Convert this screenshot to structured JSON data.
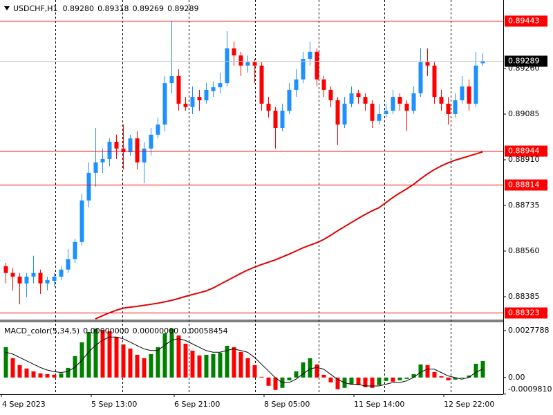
{
  "chart_data": [
    {
      "type": "candlestick",
      "title": "USDCHF,H1",
      "header_values": [
        "0.89280",
        "0.89318",
        "0.89269",
        "0.89289"
      ],
      "categories": [
        "4 Sep 2023",
        null,
        null,
        null,
        null,
        null,
        null,
        null,
        null,
        null,
        null,
        null,
        null,
        "5 Sep 13:00",
        null,
        null,
        null,
        null,
        null,
        null,
        null,
        null,
        null,
        null,
        null,
        "6 Sep 21:00",
        null,
        null,
        null,
        null,
        null,
        null,
        null,
        null,
        null,
        null,
        null,
        null,
        "8 Sep 05:00",
        null,
        null,
        null,
        null,
        null,
        null,
        null,
        null,
        null,
        null,
        null,
        null,
        "11 Sep 14:00",
        null,
        null,
        null,
        null,
        null,
        null,
        null,
        null,
        null,
        null,
        null,
        null,
        "12 Sep 22:00",
        null,
        null,
        null,
        null,
        null
      ],
      "open": [
        0.88502,
        0.88476,
        0.88462,
        0.88436,
        0.88462,
        0.88476,
        0.88436,
        0.88446,
        0.88462,
        0.88489,
        0.88529,
        0.88595,
        0.88754,
        0.8886,
        0.889,
        0.88913,
        0.88979,
        0.88953,
        0.88939,
        0.88992,
        0.889,
        0.88953,
        0.89006,
        0.89045,
        0.89204,
        0.89231,
        0.89125,
        0.89112,
        0.89151,
        0.89138,
        0.89173,
        0.89188,
        0.89204,
        0.89337,
        0.8931,
        0.89271,
        0.89284,
        0.89271,
        0.89125,
        0.89098,
        0.89032,
        0.89098,
        0.89178,
        0.89218,
        0.89297,
        0.89324,
        0.89218,
        0.89178,
        0.89138,
        0.89045,
        0.89125,
        0.89165,
        0.89151,
        0.89125,
        0.89059,
        0.89085,
        0.89098,
        0.89151,
        0.89125,
        0.89098,
        0.89165,
        0.89284,
        0.89271,
        0.89151,
        0.89125,
        0.89085,
        0.89138,
        0.89191,
        0.89125,
        0.8928
      ],
      "high": [
        0.88515,
        0.88494,
        0.88476,
        0.88476,
        0.88542,
        0.88489,
        0.88462,
        0.88476,
        0.88502,
        0.88568,
        0.88608,
        0.8878,
        0.889,
        0.89032,
        0.88953,
        0.88992,
        0.89006,
        0.89045,
        0.89006,
        0.89019,
        0.88979,
        0.89032,
        0.89072,
        0.89231,
        0.89443,
        0.89257,
        0.89151,
        0.89191,
        0.89178,
        0.89204,
        0.8921,
        0.89244,
        0.89403,
        0.89363,
        0.89324,
        0.8931,
        0.89297,
        0.89284,
        0.89151,
        0.89112,
        0.89125,
        0.89204,
        0.89257,
        0.89324,
        0.89363,
        0.89337,
        0.89231,
        0.89191,
        0.89151,
        0.89151,
        0.89191,
        0.89178,
        0.89165,
        0.89138,
        0.89125,
        0.89125,
        0.89178,
        0.89165,
        0.89138,
        0.89191,
        0.89337,
        0.89337,
        0.89284,
        0.89178,
        0.89151,
        0.89165,
        0.89231,
        0.89218,
        0.89324,
        0.89318
      ],
      "low": [
        0.88436,
        0.88409,
        0.88356,
        0.88383,
        0.88436,
        0.88396,
        0.88409,
        0.88423,
        0.88449,
        0.88476,
        0.88515,
        0.88582,
        0.88727,
        0.88807,
        0.8886,
        0.88886,
        0.88913,
        0.88873,
        0.88926,
        0.88873,
        0.8882,
        0.88926,
        0.88992,
        0.89019,
        0.89165,
        0.89098,
        0.89098,
        0.89085,
        0.89098,
        0.89125,
        0.89151,
        0.89165,
        0.89191,
        0.89271,
        0.89231,
        0.89244,
        0.89204,
        0.89098,
        0.89072,
        0.88953,
        0.89019,
        0.89085,
        0.89151,
        0.89204,
        0.89271,
        0.89191,
        0.89151,
        0.89112,
        0.88966,
        0.89032,
        0.89112,
        0.89125,
        0.89098,
        0.89032,
        0.89045,
        0.89072,
        0.89085,
        0.89098,
        0.89019,
        0.89085,
        0.89151,
        0.89231,
        0.89125,
        0.89098,
        0.89045,
        0.89072,
        0.89125,
        0.89098,
        0.89112,
        0.89269
      ],
      "close": [
        0.88476,
        0.88462,
        0.88436,
        0.88462,
        0.88476,
        0.88436,
        0.88449,
        0.88462,
        0.88489,
        0.88529,
        0.88595,
        0.88754,
        0.8886,
        0.889,
        0.88913,
        0.88979,
        0.88953,
        0.88939,
        0.88992,
        0.889,
        0.88953,
        0.89006,
        0.89045,
        0.89204,
        0.89231,
        0.89125,
        0.89112,
        0.89151,
        0.89138,
        0.89178,
        0.89188,
        0.89204,
        0.89337,
        0.8931,
        0.89271,
        0.89284,
        0.89271,
        0.89125,
        0.89098,
        0.89032,
        0.89098,
        0.89178,
        0.89218,
        0.89297,
        0.89324,
        0.89218,
        0.89178,
        0.89138,
        0.89045,
        0.89125,
        0.89165,
        0.89151,
        0.89125,
        0.89059,
        0.89085,
        0.89098,
        0.89151,
        0.89125,
        0.89098,
        0.89165,
        0.89284,
        0.89271,
        0.89151,
        0.89125,
        0.89085,
        0.89138,
        0.89191,
        0.89125,
        0.89271,
        0.89289
      ],
      "up_color": "#1e90ff",
      "down_color": "#ff0000",
      "ma": {
        "color": "#e00000",
        "values": [
          null,
          null,
          null,
          null,
          null,
          null,
          null,
          null,
          null,
          null,
          null,
          null,
          null,
          0.883,
          0.88312,
          0.88323,
          0.88333,
          0.88341,
          0.88345,
          0.88348,
          0.88352,
          0.88356,
          0.8836,
          0.88365,
          0.88371,
          0.88378,
          0.88386,
          0.88393,
          0.884,
          0.88407,
          0.88418,
          0.88432,
          0.88446,
          0.8846,
          0.88474,
          0.88487,
          0.88498,
          0.88508,
          0.88517,
          0.88526,
          0.88537,
          0.88548,
          0.8856,
          0.88572,
          0.88582,
          0.88592,
          0.88604,
          0.8862,
          0.88637,
          0.88653,
          0.88669,
          0.88685,
          0.887,
          0.88714,
          0.88726,
          0.88745,
          0.88765,
          0.88782,
          0.88798,
          0.88815,
          0.88836,
          0.88855,
          0.88872,
          0.88886,
          0.88898,
          0.88908,
          0.88916,
          0.88924,
          0.88932,
          0.8894
        ]
      },
      "levels": [
        0.89443,
        0.88944,
        0.88814,
        0.88323
      ],
      "level_color": "#ff0000",
      "last_price": 0.89289,
      "ylim": [
        0.882975,
        0.895225
      ],
      "yticks": [
        {
          "value": 0.8926,
          "label": "0.89260"
        },
        0.89085,
        {
          "value": 0.8891,
          "label": "0.88910"
        },
        0.88735,
        {
          "value": 0.8856,
          "label": "0.88560"
        },
        0.88385
      ],
      "grid": true
    },
    {
      "type": "bar",
      "title": "MACD_color(5,34,5)",
      "header_values": [
        "0.00000000",
        "0.00000000",
        "0.00058454"
      ],
      "values": [
        0.001798,
        0.001144,
        0.000735,
        0.000531,
        0.000368,
        0.000245,
        0.000204,
        0.000163,
        0.000245,
        0.000572,
        0.001267,
        0.002084,
        0.002697,
        0.002901,
        0.002819,
        0.002738,
        0.002411,
        0.001961,
        0.001716,
        0.001348,
        0.001144,
        0.001389,
        0.001798,
        0.002615,
        0.002901,
        0.002492,
        0.002002,
        0.001594,
        0.001308,
        0.001348,
        0.001389,
        0.001471,
        0.00188,
        0.001798,
        0.001512,
        0.001144,
        0.000735,
        4.1e-05,
        -0.00049,
        -0.000735,
        -0.000613,
        -0.000163,
        0.000368,
        0.000899,
        0.001144,
        0.000776,
        0.000163,
        -0.000286,
        -0.000695,
        -0.000613,
        -0.000409,
        -0.000449,
        -0.000572,
        -0.000613,
        -0.000449,
        -0.000204,
        -0.000245,
        -0.000163,
        -8.2e-05,
        0.000204,
        0.000776,
        0.000735,
        0.000327,
        8.2e-05,
        -0.000163,
        -0.000123,
        -4.1e-05,
        0.000123,
        0.000817,
        0.000981
      ],
      "up_color": "#008000",
      "down_color": "#ff0000",
      "signal": {
        "color": "#000000",
        "values": [
          0.0015,
          0.0014,
          0.0012,
          0.001,
          0.0008,
          0.0006,
          0.00045,
          0.00035,
          0.0003,
          0.00035,
          0.0006,
          0.001,
          0.0015,
          0.0019,
          0.0022,
          0.0024,
          0.0024,
          0.0023,
          0.0021,
          0.0019,
          0.0017,
          0.0016,
          0.0016,
          0.0019,
          0.0022,
          0.0023,
          0.0022,
          0.002,
          0.0018,
          0.0016,
          0.0015,
          0.0015,
          0.0016,
          0.0017,
          0.0016,
          0.0015,
          0.0012,
          0.0008,
          0.0004,
          0,
          -0.0003,
          -0.0003,
          -0.0001,
          0.0002,
          0.0005,
          0.0006,
          0.0005,
          0.0002,
          -0.0001,
          -0.0003,
          -0.0004,
          -0.0004,
          -0.0005,
          -0.0005,
          -0.0005,
          -0.0004,
          -0.0003,
          -0.0003,
          -0.0002,
          0,
          0.0003,
          0.0005,
          0.0005,
          0.0003,
          0.0001,
          0,
          -0.0001,
          0,
          0.0003,
          0.0005
        ]
      },
      "ylim": [
        -0.00099,
        0.00327
      ],
      "yticks": [
        0.0027788,
        {
          "value": 0,
          "label": "0.00"
        },
        {
          "value": -0.000981,
          "label": "-0.0009810"
        }
      ]
    }
  ]
}
